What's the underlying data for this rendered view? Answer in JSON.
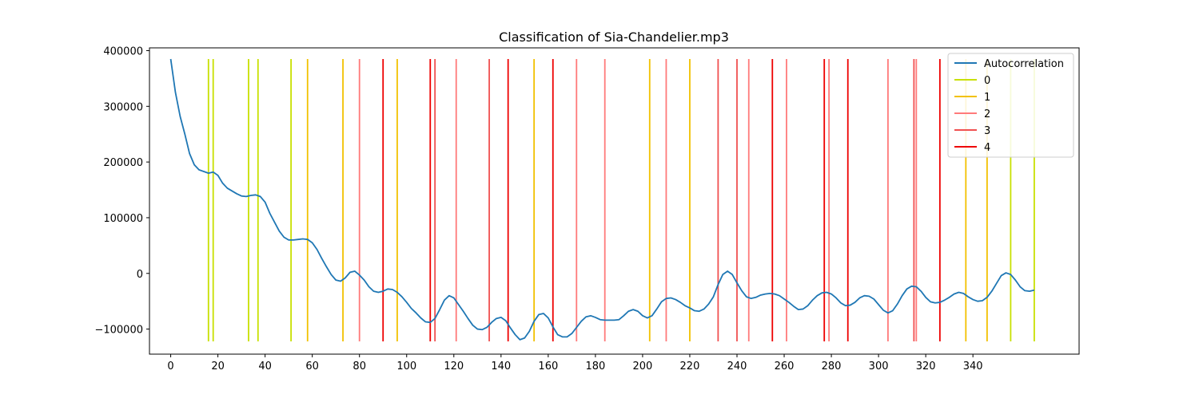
{
  "chart_data": {
    "type": "line",
    "title": "Classification of Sia-Chandelier.mp3",
    "xlabel": "",
    "ylabel": "",
    "xlim": [
      -9,
      385
    ],
    "ylim": [
      -145000,
      405000
    ],
    "x_ticks": [
      0,
      20,
      40,
      60,
      80,
      100,
      120,
      140,
      160,
      180,
      200,
      220,
      240,
      260,
      280,
      300,
      320,
      340
    ],
    "y_ticks": [
      -100000,
      0,
      100000,
      200000,
      300000,
      400000
    ],
    "y_tick_labels": [
      "−100000",
      "0",
      "100000",
      "200000",
      "300000",
      "400000"
    ],
    "grid": false,
    "legend_position": "top-right",
    "series": [
      {
        "name": "Autocorrelation",
        "color": "#1f77b4",
        "points": [
          [
            0,
            385000
          ],
          [
            2,
            325000
          ],
          [
            4,
            282000
          ],
          [
            6,
            250000
          ],
          [
            8,
            215000
          ],
          [
            10,
            195000
          ],
          [
            12,
            186000
          ],
          [
            14,
            183000
          ],
          [
            16,
            180000
          ],
          [
            18,
            182000
          ],
          [
            20,
            176000
          ],
          [
            22,
            162000
          ],
          [
            24,
            153000
          ],
          [
            26,
            148000
          ],
          [
            28,
            143000
          ],
          [
            30,
            139000
          ],
          [
            32,
            138000
          ],
          [
            34,
            140000
          ],
          [
            36,
            141000
          ],
          [
            38,
            138000
          ],
          [
            40,
            128000
          ],
          [
            42,
            108000
          ],
          [
            44,
            92000
          ],
          [
            46,
            76000
          ],
          [
            48,
            65000
          ],
          [
            50,
            60000
          ],
          [
            52,
            60000
          ],
          [
            54,
            61000
          ],
          [
            56,
            62000
          ],
          [
            58,
            61000
          ],
          [
            60,
            55000
          ],
          [
            62,
            43000
          ],
          [
            64,
            27000
          ],
          [
            66,
            12000
          ],
          [
            68,
            -2000
          ],
          [
            70,
            -12000
          ],
          [
            72,
            -14000
          ],
          [
            74,
            -8000
          ],
          [
            76,
            2000
          ],
          [
            78,
            4000
          ],
          [
            80,
            -3000
          ],
          [
            82,
            -12000
          ],
          [
            84,
            -24000
          ],
          [
            86,
            -32000
          ],
          [
            88,
            -34000
          ],
          [
            90,
            -32000
          ],
          [
            92,
            -28000
          ],
          [
            94,
            -29000
          ],
          [
            96,
            -34000
          ],
          [
            98,
            -42000
          ],
          [
            100,
            -52000
          ],
          [
            102,
            -63000
          ],
          [
            104,
            -71000
          ],
          [
            106,
            -80000
          ],
          [
            108,
            -87000
          ],
          [
            110,
            -88000
          ],
          [
            112,
            -81000
          ],
          [
            114,
            -65000
          ],
          [
            116,
            -48000
          ],
          [
            118,
            -40000
          ],
          [
            120,
            -44000
          ],
          [
            122,
            -56000
          ],
          [
            124,
            -68000
          ],
          [
            126,
            -81000
          ],
          [
            128,
            -93000
          ],
          [
            130,
            -100000
          ],
          [
            132,
            -101000
          ],
          [
            134,
            -97000
          ],
          [
            136,
            -88000
          ],
          [
            138,
            -81000
          ],
          [
            140,
            -79000
          ],
          [
            142,
            -85000
          ],
          [
            144,
            -98000
          ],
          [
            146,
            -110000
          ],
          [
            148,
            -119000
          ],
          [
            150,
            -116000
          ],
          [
            152,
            -104000
          ],
          [
            154,
            -86000
          ],
          [
            156,
            -74000
          ],
          [
            158,
            -72000
          ],
          [
            160,
            -80000
          ],
          [
            162,
            -96000
          ],
          [
            164,
            -110000
          ],
          [
            166,
            -114000
          ],
          [
            168,
            -114000
          ],
          [
            170,
            -108000
          ],
          [
            172,
            -97000
          ],
          [
            174,
            -86000
          ],
          [
            176,
            -78000
          ],
          [
            178,
            -76000
          ],
          [
            180,
            -79000
          ],
          [
            182,
            -83000
          ],
          [
            184,
            -84000
          ],
          [
            186,
            -84000
          ],
          [
            188,
            -84000
          ],
          [
            190,
            -83000
          ],
          [
            192,
            -76000
          ],
          [
            194,
            -68000
          ],
          [
            196,
            -65000
          ],
          [
            198,
            -68000
          ],
          [
            200,
            -76000
          ],
          [
            202,
            -80000
          ],
          [
            204,
            -76000
          ],
          [
            206,
            -64000
          ],
          [
            208,
            -51000
          ],
          [
            210,
            -45000
          ],
          [
            212,
            -44000
          ],
          [
            214,
            -47000
          ],
          [
            216,
            -52000
          ],
          [
            218,
            -58000
          ],
          [
            220,
            -62000
          ],
          [
            222,
            -67000
          ],
          [
            224,
            -68000
          ],
          [
            226,
            -64000
          ],
          [
            228,
            -55000
          ],
          [
            230,
            -42000
          ],
          [
            232,
            -20000
          ],
          [
            234,
            -2000
          ],
          [
            236,
            4000
          ],
          [
            238,
            -2000
          ],
          [
            240,
            -17000
          ],
          [
            242,
            -31000
          ],
          [
            244,
            -42000
          ],
          [
            246,
            -45000
          ],
          [
            248,
            -43000
          ],
          [
            250,
            -39000
          ],
          [
            252,
            -37000
          ],
          [
            254,
            -36000
          ],
          [
            256,
            -37000
          ],
          [
            258,
            -40000
          ],
          [
            260,
            -46000
          ],
          [
            262,
            -52000
          ],
          [
            264,
            -59000
          ],
          [
            266,
            -65000
          ],
          [
            268,
            -64000
          ],
          [
            270,
            -58000
          ],
          [
            272,
            -48000
          ],
          [
            274,
            -40000
          ],
          [
            276,
            -35000
          ],
          [
            278,
            -34000
          ],
          [
            280,
            -37000
          ],
          [
            282,
            -44000
          ],
          [
            284,
            -53000
          ],
          [
            286,
            -58000
          ],
          [
            288,
            -57000
          ],
          [
            290,
            -52000
          ],
          [
            292,
            -44000
          ],
          [
            294,
            -40000
          ],
          [
            296,
            -41000
          ],
          [
            298,
            -46000
          ],
          [
            300,
            -56000
          ],
          [
            302,
            -66000
          ],
          [
            304,
            -71000
          ],
          [
            306,
            -67000
          ],
          [
            308,
            -55000
          ],
          [
            310,
            -40000
          ],
          [
            312,
            -28000
          ],
          [
            314,
            -23000
          ],
          [
            316,
            -24000
          ],
          [
            318,
            -32000
          ],
          [
            320,
            -43000
          ],
          [
            322,
            -51000
          ],
          [
            324,
            -53000
          ],
          [
            326,
            -52000
          ],
          [
            328,
            -48000
          ],
          [
            330,
            -43000
          ],
          [
            332,
            -37000
          ],
          [
            334,
            -34000
          ],
          [
            336,
            -36000
          ],
          [
            338,
            -42000
          ],
          [
            340,
            -47000
          ],
          [
            342,
            -50000
          ],
          [
            344,
            -49000
          ],
          [
            346,
            -43000
          ],
          [
            348,
            -32000
          ],
          [
            350,
            -18000
          ],
          [
            352,
            -4000
          ],
          [
            354,
            1000
          ],
          [
            356,
            -2000
          ],
          [
            358,
            -12000
          ],
          [
            360,
            -24000
          ],
          [
            362,
            -31000
          ],
          [
            364,
            -32000
          ],
          [
            366,
            -30000
          ]
        ]
      }
    ],
    "vline_ymin": -122000,
    "vline_ymax": 385000,
    "vline_groups": [
      {
        "name": "0",
        "color": "#c8e000",
        "x": [
          16,
          18,
          33,
          37,
          51,
          356,
          366
        ]
      },
      {
        "name": "1",
        "color": "#f2c100",
        "x": [
          58,
          73,
          96,
          154,
          203,
          220,
          337,
          346
        ]
      },
      {
        "name": "2",
        "color": "#ff7a7a",
        "x": [
          80,
          121,
          172,
          184,
          210,
          245,
          261,
          279,
          304,
          316
        ]
      },
      {
        "name": "3",
        "color": "#f05050",
        "x": [
          112,
          135,
          232,
          240,
          315
        ]
      },
      {
        "name": "4",
        "color": "#ee0000",
        "x": [
          90,
          110,
          143,
          162,
          255,
          277,
          287,
          326
        ]
      }
    ]
  }
}
